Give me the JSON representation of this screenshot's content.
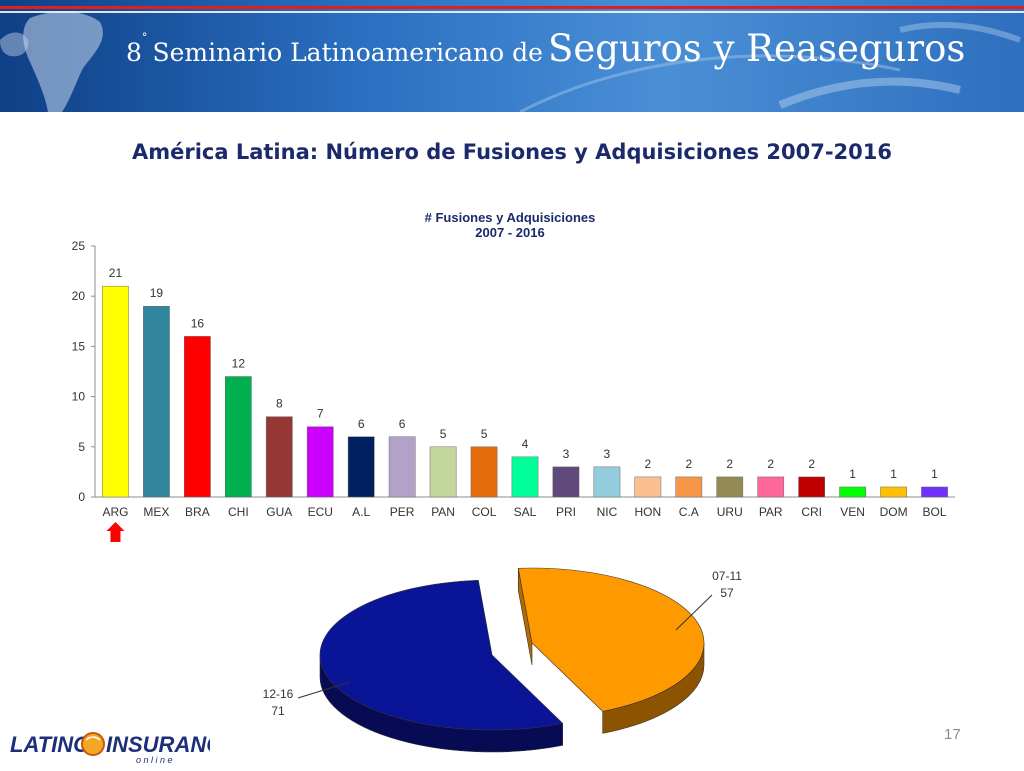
{
  "banner": {
    "ordinal": "8",
    "ordinal_suffix": "°",
    "title_small": "Seminario Latinoamericano de",
    "title_big": "Seguros y Reaseguros"
  },
  "slide_title": "América Latina: Número de Fusiones y Adquisiciones 2007-2016",
  "chart_data": [
    {
      "type": "bar",
      "title": "# Fusiones y Adquisiciones",
      "subtitle": "2007 - 2016",
      "xlabel": "",
      "ylabel": "",
      "ylim": [
        0,
        25
      ],
      "yticks": [
        0,
        5,
        10,
        15,
        20,
        25
      ],
      "grid": false,
      "categories": [
        "ARG",
        "MEX",
        "BRA",
        "CHI",
        "GUA",
        "ECU",
        "A.L",
        "PER",
        "PAN",
        "COL",
        "SAL",
        "PRI",
        "NIC",
        "HON",
        "C.A",
        "URU",
        "PAR",
        "CRI",
        "VEN",
        "DOM",
        "BOL"
      ],
      "values": [
        21,
        19,
        16,
        12,
        8,
        7,
        6,
        6,
        5,
        5,
        4,
        3,
        3,
        2,
        2,
        2,
        2,
        2,
        1,
        1,
        1
      ],
      "colors": [
        "#ffff00",
        "#31859c",
        "#ff0000",
        "#00b050",
        "#953735",
        "#cc00ff",
        "#002060",
        "#b3a2c7",
        "#c3d69b",
        "#e46c0a",
        "#00ff99",
        "#604a7b",
        "#93cddd",
        "#fac090",
        "#f79646",
        "#948a54",
        "#ff6699",
        "#c00000",
        "#00ff00",
        "#ffc000",
        "#7030ff"
      ],
      "highlight": "ARG"
    },
    {
      "type": "pie",
      "labels": [
        "07-11",
        "12-16"
      ],
      "values": [
        57,
        71
      ],
      "colors": [
        "#ff9900",
        "#0a1496"
      ]
    }
  ],
  "footer": {
    "logo_left": "LATINO",
    "logo_right": "INSURANCE",
    "logo_sub": "o n   l i n e",
    "page_number": "17"
  }
}
